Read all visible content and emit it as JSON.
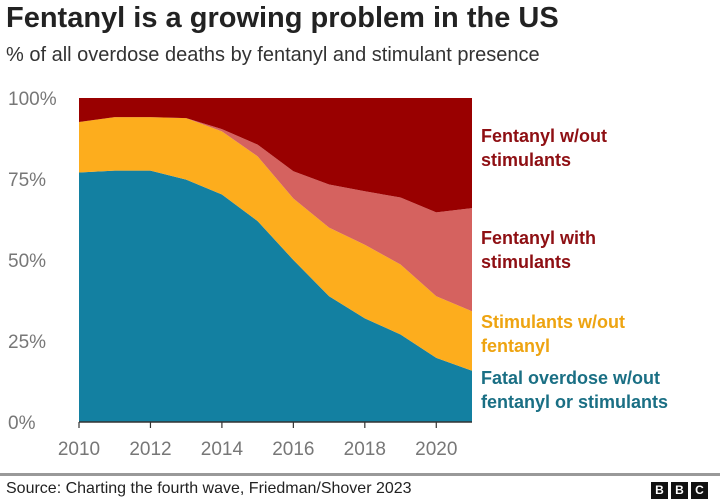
{
  "title": "Fentanyl is a growing problem in the US",
  "subtitle": "% of all overdose deaths by fentanyl and stimulant presence",
  "source": "Source: Charting the fourth wave, Friedman/Shover 2023",
  "logo": [
    "B",
    "B",
    "C"
  ],
  "chart_data": {
    "type": "area",
    "stacked": true,
    "title": "Fentanyl is a growing problem in the US",
    "subtitle": "% of all overdose deaths by fentanyl and stimulant presence",
    "x": [
      2010,
      2011,
      2012,
      2013,
      2014,
      2015,
      2016,
      2017,
      2018,
      2019,
      2020,
      2021
    ],
    "xticks": [
      "2010",
      "2012",
      "2014",
      "2016",
      "2018",
      "2020"
    ],
    "yticks": [
      "0%",
      "25%",
      "50%",
      "75%",
      "100%"
    ],
    "ylim": [
      0,
      100
    ],
    "grid": false,
    "legend": "right, direct labels",
    "series": [
      {
        "name": "Fatal overdose w/out fentanyl or stimulants",
        "color": "#1380a1",
        "label_color": "#1a6f84",
        "values": [
          77,
          77.6,
          77.6,
          74.8,
          70.2,
          62,
          50,
          38.8,
          32,
          27,
          19.8,
          15.8
        ]
      },
      {
        "name": "Stimulants w/out fentanyl",
        "color": "#fdad1d",
        "label_color": "#eea411",
        "values": [
          15.6,
          16.5,
          16.5,
          19,
          19.5,
          20,
          19,
          21.2,
          22.7,
          21.6,
          19,
          18.4
        ]
      },
      {
        "name": "Fentanyl with stimulants",
        "color": "#d5625f",
        "label_color": "#8e0f13",
        "values": [
          0,
          0,
          0,
          0,
          0.7,
          3.6,
          8.4,
          13.3,
          16.5,
          20.7,
          25.9,
          31.8
        ]
      },
      {
        "name": "Fentanyl w/out stimulants",
        "color": "#990000",
        "label_color": "#8e0f13",
        "values": [
          7.4,
          5.9,
          5.9,
          6.2,
          9.6,
          14.4,
          22.6,
          26.7,
          28.8,
          30.7,
          35.3,
          34
        ]
      }
    ]
  }
}
